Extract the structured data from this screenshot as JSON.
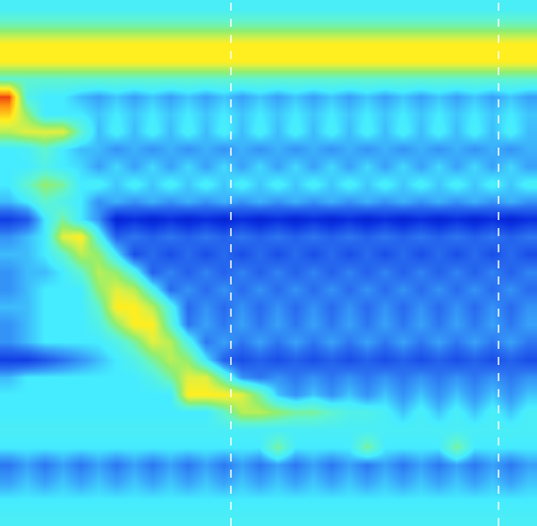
{
  "chart_data": {
    "type": "heatmap",
    "tick_labels": false,
    "xlim": [
      -0.5,
      29.5
    ],
    "ylim": [
      29.5,
      -0.5
    ],
    "zlim": [
      0,
      10
    ],
    "vertical_lines": [
      12.4,
      27.35
    ],
    "cells": [
      [
        4.2,
        4.2,
        4.2,
        4.2,
        4.2,
        4.2,
        4.2,
        4.2,
        4.2,
        4.2,
        4.2,
        4.2,
        4.2,
        4.2,
        4.2,
        4.2,
        4.2,
        4.2,
        4.2,
        4.2,
        4.2,
        4.2,
        4.2,
        4.2,
        4.2,
        4.2,
        4.2,
        4.2,
        4.2,
        4.2
      ],
      [
        5.5,
        5.5,
        5.5,
        5.5,
        5.5,
        5.5,
        5.5,
        5.5,
        5.5,
        5.5,
        5.5,
        5.5,
        5.5,
        5.5,
        5.5,
        5.5,
        5.5,
        5.5,
        5.5,
        5.5,
        5.5,
        5.5,
        5.5,
        5.5,
        5.5,
        5.5,
        5.5,
        5.5,
        5.5,
        5.5
      ],
      [
        7.5,
        7.5,
        7.5,
        7.5,
        7.5,
        7.5,
        7.5,
        7.5,
        7.5,
        7.5,
        7.5,
        7.5,
        7.5,
        7.5,
        7.5,
        7.5,
        7.5,
        7.5,
        7.5,
        7.5,
        7.5,
        7.5,
        7.5,
        7.5,
        7.5,
        7.5,
        7.5,
        7.5,
        7.5,
        7.5
      ],
      [
        7.5,
        7.5,
        7.5,
        7.5,
        7.5,
        7.5,
        7.5,
        7.5,
        7.5,
        7.5,
        7.5,
        7.5,
        7.5,
        7.5,
        7.5,
        7.5,
        7.5,
        7.5,
        7.5,
        7.5,
        7.5,
        7.5,
        7.5,
        7.5,
        7.5,
        7.5,
        7.5,
        7.5,
        7.5,
        7.5
      ],
      [
        5,
        5,
        5,
        5,
        5,
        5,
        5,
        5,
        5,
        5,
        5,
        5,
        5,
        5,
        5,
        5,
        5,
        5,
        5,
        5,
        5,
        5,
        5,
        5,
        5,
        5,
        5,
        5,
        5,
        5
      ],
      [
        9.5,
        4.5,
        4,
        4,
        3.5,
        3.2,
        3.6,
        3.2,
        3.6,
        3.2,
        3.6,
        3.2,
        3.6,
        3.2,
        3.6,
        3.2,
        3.6,
        3.2,
        3.6,
        3.2,
        3.6,
        3.2,
        3.6,
        3.2,
        3.6,
        3.2,
        3.6,
        3.2,
        3.6,
        3.2
      ],
      [
        8,
        6,
        4,
        4,
        4,
        3.6,
        4.0,
        3.6,
        4.0,
        3.6,
        4.0,
        3.6,
        4.0,
        3.6,
        4.0,
        3.6,
        4.0,
        3.6,
        4.0,
        3.6,
        4.0,
        3.6,
        4.0,
        3.6,
        4.0,
        3.6,
        4.0,
        3.6,
        4.0,
        3.6
      ],
      [
        6.5,
        7,
        7,
        7,
        5,
        3.5,
        4.2,
        3.5,
        4.2,
        3.5,
        4.2,
        3.5,
        4.2,
        3.5,
        4.2,
        3.5,
        4.2,
        3.5,
        4.2,
        3.5,
        4.2,
        3.5,
        4.2,
        3.5,
        4.2,
        3.5,
        4.2,
        3.5,
        4.2,
        3.5
      ],
      [
        4,
        4.2,
        5,
        4,
        3.5,
        3.5,
        3,
        3.4,
        3,
        3.4,
        3,
        3.4,
        3,
        3.4,
        3,
        3.4,
        3,
        3.4,
        3,
        3.4,
        3,
        3.4,
        3,
        3.4,
        3,
        3.4,
        3,
        3.4,
        3,
        3.4
      ],
      [
        4,
        4,
        4.5,
        4,
        3.8,
        3.2,
        3.8,
        3.2,
        3.8,
        3.2,
        3.8,
        3.2,
        3.8,
        3.2,
        3.8,
        3.2,
        3.8,
        3.2,
        3.8,
        3.2,
        3.8,
        3.2,
        3.8,
        3.2,
        3.8,
        3.2,
        3.8,
        3.2,
        3.8,
        3.2
      ],
      [
        4,
        5,
        6,
        5.5,
        4,
        4.2,
        3.6,
        4.2,
        3.6,
        4.2,
        3.6,
        4.2,
        3.6,
        4.2,
        3.6,
        4.2,
        3.6,
        4.2,
        3.6,
        4.2,
        3.6,
        4.2,
        3.6,
        4.2,
        3.6,
        4.2,
        3.6,
        4.2,
        3.6,
        4.2
      ],
      [
        3.5,
        4,
        5,
        4.5,
        4,
        3.0,
        3.4,
        3.0,
        3.4,
        3.0,
        3.4,
        3.0,
        3.4,
        3.0,
        3.4,
        3.0,
        3.4,
        3.0,
        3.4,
        3.0,
        3.4,
        3.0,
        3.4,
        3.0,
        3.4,
        3.0,
        3.4,
        3.0,
        3.4,
        3.0
      ],
      [
        1.5,
        2,
        4,
        5.5,
        4,
        3,
        0.8,
        1.2,
        0.8,
        1.2,
        0.8,
        1.2,
        0.8,
        1.2,
        0.8,
        1.2,
        0.8,
        1.2,
        0.8,
        1.2,
        0.8,
        1.2,
        0.8,
        1.2,
        0.8,
        1.2,
        0.8,
        1.2,
        0.8,
        1.2
      ],
      [
        3,
        3.5,
        4,
        7,
        7.5,
        4.5,
        2.2,
        2.6,
        2.2,
        2.6,
        2.2,
        2.6,
        2.2,
        2.6,
        2.2,
        2.6,
        2.2,
        2.6,
        2.2,
        2.6,
        2.2,
        2.6,
        2.2,
        2.6,
        2.2,
        2.6,
        2.2,
        2.6,
        2.2,
        2.6
      ],
      [
        3.5,
        3.5,
        4,
        5,
        6.5,
        6,
        4,
        1.8,
        2.4,
        1.8,
        2.4,
        1.8,
        2.4,
        1.8,
        2.4,
        1.8,
        2.4,
        1.8,
        2.4,
        1.8,
        2.4,
        1.8,
        2.4,
        1.8,
        2.4,
        1.8,
        2.4,
        1.8,
        2.4,
        1.8
      ],
      [
        3,
        3.5,
        3.5,
        4,
        5,
        6.5,
        6,
        4.5,
        2.2,
        2.8,
        2.2,
        2.8,
        2.2,
        2.8,
        2.2,
        2.8,
        2.2,
        2.8,
        2.2,
        2.8,
        2.2,
        2.8,
        2.2,
        2.8,
        2.2,
        2.8,
        2.2,
        2.8,
        2.2,
        2.8
      ],
      [
        3,
        3.5,
        4,
        4,
        4,
        6,
        7,
        6.5,
        4.5,
        2.4,
        3,
        2.4,
        3,
        2.4,
        3,
        2.4,
        3,
        2.4,
        3,
        2.4,
        3,
        2.4,
        3,
        2.4,
        3,
        2.4,
        3,
        2.4,
        3,
        2.4
      ],
      [
        3.5,
        3.5,
        4,
        4,
        4,
        5,
        7.5,
        7.5,
        6.5,
        4.5,
        2.4,
        3,
        2.4,
        3,
        2.4,
        3,
        2.4,
        3,
        2.4,
        3,
        2.4,
        3,
        2.4,
        3,
        2.4,
        3,
        2.4,
        3,
        2.4,
        3
      ],
      [
        3,
        3.5,
        4,
        4,
        4,
        4.5,
        6,
        7.5,
        7.5,
        5,
        2.6,
        3.2,
        2.6,
        3.2,
        2.6,
        3.2,
        2.6,
        3.2,
        2.6,
        3.2,
        2.6,
        3.2,
        2.6,
        3.2,
        2.6,
        3.2,
        2.6,
        3.2,
        2.6,
        3.2
      ],
      [
        3,
        3.5,
        4,
        4,
        4,
        4,
        4.5,
        5.5,
        7,
        6.5,
        4.5,
        2.6,
        3.2,
        2.6,
        3.2,
        2.6,
        3.2,
        2.6,
        3.2,
        2.6,
        3.2,
        2.6,
        3.2,
        2.6,
        3.2,
        2.6,
        3.2,
        2.6,
        3.2,
        2.6
      ],
      [
        1.5,
        1.5,
        2,
        2.5,
        3,
        3.5,
        4,
        4.5,
        5.5,
        6.5,
        6,
        4,
        2.2,
        1.8,
        2.2,
        1.8,
        2.2,
        1.8,
        2.2,
        1.8,
        2.2,
        1.8,
        2.2,
        1.8,
        2.2,
        1.8,
        2.2,
        1.8,
        2.2,
        1.8
      ],
      [
        3.5,
        4,
        4,
        4,
        4,
        4,
        4,
        4,
        4.5,
        5.5,
        7,
        7,
        5,
        3,
        2.6,
        3,
        2.6,
        3,
        2.6,
        3,
        2.6,
        3,
        2.6,
        3,
        2.6,
        3,
        2.6,
        3,
        2.6,
        3
      ],
      [
        4,
        4,
        4,
        4,
        4,
        4,
        4,
        4,
        4,
        4,
        7.5,
        7.5,
        7.5,
        7,
        5.5,
        3.6,
        3.0,
        3.6,
        3.0,
        3.6,
        3.0,
        3.6,
        3.0,
        3.6,
        3.0,
        3.6,
        3.0,
        3.6,
        3.0,
        3.6
      ],
      [
        4,
        4,
        4,
        4,
        4,
        4,
        4,
        4,
        4,
        4,
        4,
        4,
        5,
        6.5,
        6.5,
        6,
        5.5,
        5.5,
        5,
        4.5,
        4.5,
        4.2,
        3.6,
        4.2,
        3.6,
        4.2,
        3.6,
        4.2,
        3.6,
        4.2
      ],
      [
        4.2,
        4.2,
        4.2,
        4.2,
        4.2,
        4.2,
        4.2,
        4.2,
        4.2,
        4.2,
        4.2,
        4.2,
        4.2,
        4.2,
        4.2,
        4.2,
        4.2,
        4.2,
        4.2,
        4.2,
        4.2,
        4.2,
        4.2,
        4.2,
        4.2,
        4.2,
        4.2,
        4.2,
        4.2,
        4.2
      ],
      [
        4,
        4,
        4,
        4,
        4,
        4,
        4,
        4,
        4,
        4,
        4,
        4,
        4,
        4,
        4,
        5.5,
        4,
        4,
        4,
        4,
        5.5,
        4,
        4,
        4,
        4,
        5.5,
        4,
        4,
        4,
        4
      ],
      [
        2.6,
        3.2,
        2.6,
        3.2,
        2.6,
        3.2,
        2.6,
        3.2,
        2.6,
        3.2,
        2.6,
        3.2,
        2.6,
        3.2,
        2.6,
        3.2,
        2.6,
        3.2,
        2.6,
        3.2,
        2.6,
        3.2,
        2.6,
        3.2,
        2.6,
        3.2,
        2.6,
        3.2,
        2.6,
        3.2
      ],
      [
        3.2,
        3.6,
        3.2,
        3.6,
        3.2,
        3.6,
        3.2,
        3.6,
        3.2,
        3.6,
        3.2,
        3.6,
        3.2,
        3.6,
        3.2,
        3.6,
        3.2,
        3.6,
        3.2,
        3.6,
        3.2,
        3.6,
        3.2,
        3.6,
        3.2,
        3.6,
        3.2,
        3.6,
        3.2,
        3.6
      ],
      [
        4,
        4,
        4,
        4,
        4,
        4,
        4,
        4,
        4,
        4,
        4,
        4,
        4,
        4,
        4,
        4,
        4,
        4,
        4,
        4,
        4,
        4,
        4,
        4,
        4,
        4,
        4,
        4,
        4,
        4
      ],
      [
        4.2,
        4.2,
        4.2,
        4.2,
        4.2,
        4.2,
        4.2,
        4.2,
        4.2,
        4.2,
        4.2,
        4.2,
        4.2,
        4.2,
        4.2,
        4.2,
        4.2,
        4.2,
        4.2,
        4.2,
        4.2,
        4.2,
        4.2,
        4.2,
        4.2,
        4.2,
        4.2,
        4.2,
        4.2,
        4.2
      ]
    ]
  }
}
